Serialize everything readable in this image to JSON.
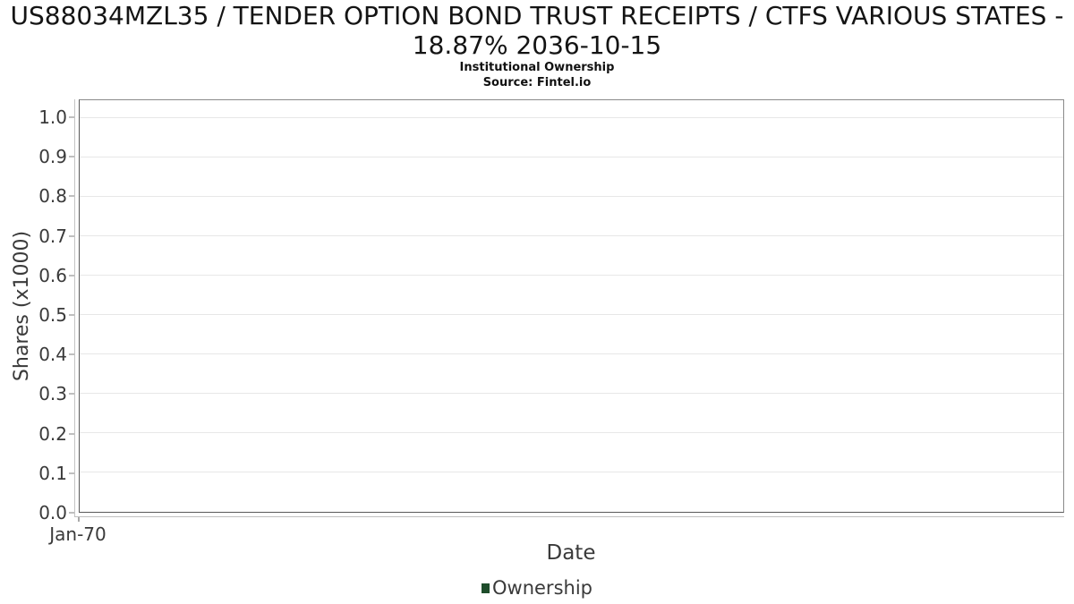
{
  "header": {
    "title": "US88034MZL35 / TENDER OPTION BOND TRUST RECEIPTS / CTFS VARIOUS STATES - 18.87% 2036-10-15",
    "subtitle": "Institutional Ownership",
    "source": "Source: Fintel.io"
  },
  "chart_data": {
    "type": "line",
    "title": "US88034MZL35 / TENDER OPTION BOND TRUST RECEIPTS / CTFS VARIOUS STATES - 18.87% 2036-10-15",
    "subtitle": "Institutional Ownership",
    "source": "Source: Fintel.io",
    "xlabel": "Date",
    "ylabel": "Shares (x1000)",
    "ylim": [
      0,
      1.045
    ],
    "yticks": [
      0.0,
      0.1,
      0.2,
      0.3,
      0.4,
      0.5,
      0.6,
      0.7,
      0.8,
      0.9,
      1.0
    ],
    "xticks": [
      "Jan-70"
    ],
    "grid": "horizontal",
    "legend_position": "bottom-center",
    "series": [
      {
        "name": "Ownership",
        "color": "#1e4d2b",
        "x": [],
        "values": []
      }
    ]
  }
}
